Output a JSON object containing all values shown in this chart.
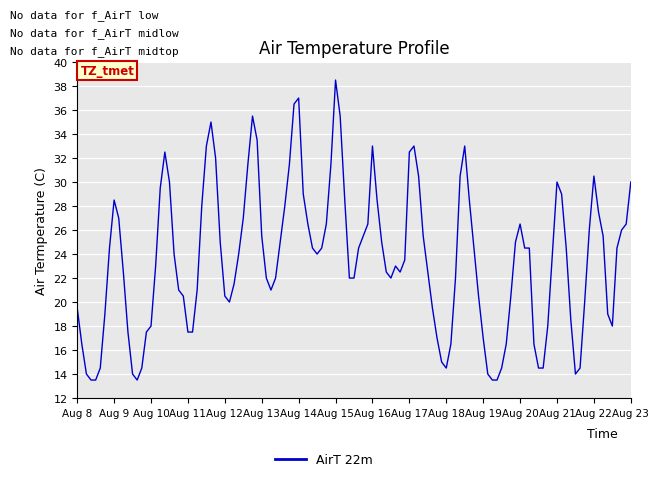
{
  "title": "Air Temperature Profile",
  "xlabel": "Time",
  "ylabel": "Air Termperature (C)",
  "ylim": [
    12,
    40
  ],
  "yticks": [
    12,
    14,
    16,
    18,
    20,
    22,
    24,
    26,
    28,
    30,
    32,
    34,
    36,
    38,
    40
  ],
  "background_color": "#e8e8e8",
  "line_color": "#0000cc",
  "legend_label": "AirT 22m",
  "no_data_texts": [
    "No data for f_AirT low",
    "No data for f_AirT midlow",
    "No data for f_AirT midtop"
  ],
  "tz_label": "TZ_tmet",
  "x_values": [
    0.0,
    0.125,
    0.25,
    0.375,
    0.5,
    0.625,
    0.75,
    0.875,
    1.0,
    1.125,
    1.25,
    1.375,
    1.5,
    1.625,
    1.75,
    1.875,
    2.0,
    2.125,
    2.25,
    2.375,
    2.5,
    2.625,
    2.75,
    2.875,
    3.0,
    3.125,
    3.25,
    3.375,
    3.5,
    3.625,
    3.75,
    3.875,
    4.0,
    4.125,
    4.25,
    4.375,
    4.5,
    4.625,
    4.75,
    4.875,
    5.0,
    5.125,
    5.25,
    5.375,
    5.5,
    5.625,
    5.75,
    5.875,
    6.0,
    6.125,
    6.25,
    6.375,
    6.5,
    6.625,
    6.75,
    6.875,
    7.0,
    7.125,
    7.25,
    7.375,
    7.5,
    7.625,
    7.75,
    7.875,
    8.0,
    8.125,
    8.25,
    8.375,
    8.5,
    8.625,
    8.75,
    8.875,
    9.0,
    9.125,
    9.25,
    9.375,
    9.5,
    9.625,
    9.75,
    9.875,
    10.0,
    10.125,
    10.25,
    10.375,
    10.5,
    10.625,
    10.75,
    10.875,
    11.0,
    11.125,
    11.25,
    11.375,
    11.5,
    11.625,
    11.75,
    11.875,
    12.0,
    12.125,
    12.25,
    12.375,
    12.5,
    12.625,
    12.75,
    12.875,
    13.0,
    13.125,
    13.25,
    13.375,
    13.5,
    13.625,
    13.75,
    13.875,
    14.0,
    14.125,
    14.25,
    14.375,
    14.5,
    14.625,
    14.75,
    14.875,
    15.0
  ],
  "y_values": [
    19.5,
    16.5,
    14.0,
    13.5,
    13.5,
    14.5,
    19.0,
    24.5,
    28.5,
    27.0,
    22.5,
    17.5,
    14.0,
    13.5,
    14.5,
    17.5,
    18.0,
    23.0,
    29.5,
    32.5,
    30.0,
    24.0,
    21.0,
    20.5,
    17.5,
    17.5,
    21.0,
    28.0,
    33.0,
    35.0,
    32.0,
    25.0,
    20.5,
    20.0,
    21.5,
    24.0,
    27.0,
    31.5,
    35.5,
    33.5,
    25.5,
    22.0,
    21.0,
    22.0,
    25.0,
    28.0,
    31.5,
    36.5,
    37.0,
    29.0,
    26.5,
    24.5,
    24.0,
    24.5,
    26.5,
    31.5,
    38.5,
    35.5,
    28.5,
    22.0,
    22.0,
    24.5,
    25.5,
    26.5,
    33.0,
    28.5,
    25.0,
    22.5,
    22.0,
    23.0,
    22.5,
    23.5,
    32.5,
    33.0,
    30.5,
    25.5,
    22.5,
    19.5,
    17.0,
    15.0,
    14.5,
    16.5,
    22.0,
    30.5,
    33.0,
    28.5,
    24.5,
    20.5,
    17.0,
    14.0,
    13.5,
    13.5,
    14.5,
    16.5,
    20.5,
    25.0,
    26.5,
    24.5,
    24.5,
    16.5,
    14.5,
    14.5,
    18.0,
    24.0,
    30.0,
    29.0,
    24.5,
    18.5,
    14.0,
    14.5,
    20.0,
    26.0,
    30.5,
    27.5,
    25.5,
    19.0,
    18.0,
    24.5,
    26.0,
    26.5,
    30.0
  ],
  "xtick_positions": [
    0,
    1,
    2,
    3,
    4,
    5,
    6,
    7,
    8,
    9,
    10,
    11,
    12,
    13,
    14,
    15
  ],
  "xtick_labels": [
    "Aug 8",
    "Aug 9",
    "Aug 10",
    "Aug 11",
    "Aug 12",
    "Aug 13",
    "Aug 14",
    "Aug 15",
    "Aug 16",
    "Aug 17",
    "Aug 18",
    "Aug 19",
    "Aug 20",
    "Aug 21",
    "Aug 22",
    "Aug 23"
  ],
  "figsize": [
    6.4,
    4.8
  ],
  "dpi": 100
}
